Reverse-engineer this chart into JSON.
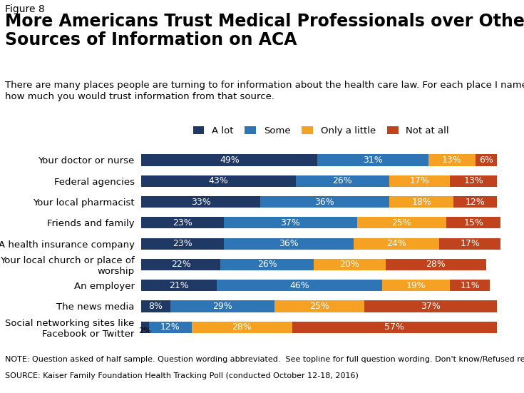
{
  "figure_label": "Figure 8",
  "title": "More Americans Trust Medical Professionals over Other\nSources of Information on ACA",
  "subtitle": "There are many places people are turning to for information about the health care law. For each place I name, tell me\nhow much you would trust information from that source.",
  "categories": [
    "Your doctor or nurse",
    "Federal agencies",
    "Your local pharmacist",
    "Friends and family",
    "A health insurance company",
    "Your local church or place of\nworship",
    "An employer",
    "The news media",
    "Social networking sites like\nFacebook or Twitter"
  ],
  "series": {
    "A lot": [
      49,
      43,
      33,
      23,
      23,
      22,
      21,
      8,
      2
    ],
    "Some": [
      31,
      26,
      36,
      37,
      36,
      26,
      46,
      29,
      12
    ],
    "Only a little": [
      13,
      17,
      18,
      25,
      24,
      20,
      19,
      25,
      28
    ],
    "Not at all": [
      6,
      13,
      12,
      15,
      17,
      28,
      11,
      37,
      57
    ]
  },
  "colors": {
    "A lot": "#1f3864",
    "Some": "#2e75b6",
    "Only a little": "#f4a124",
    "Not at all": "#c0431e"
  },
  "note1": "NOTE: Question asked of half sample. Question wording abbreviated.  See topline for full question wording. Don't know/Refused responses not shown.",
  "note2": "SOURCE: Kaiser Family Foundation Health Tracking Poll (conducted October 12-18, 2016)",
  "bar_height": 0.55,
  "background_color": "#ffffff",
  "text_color": "#000000",
  "label_fontsize": 9,
  "title_fontsize": 17,
  "figure_label_fontsize": 10,
  "subtitle_fontsize": 9.5,
  "note_fontsize": 8,
  "logo_bg": "#1a3a6b",
  "logo_text_color": "#ffffff"
}
